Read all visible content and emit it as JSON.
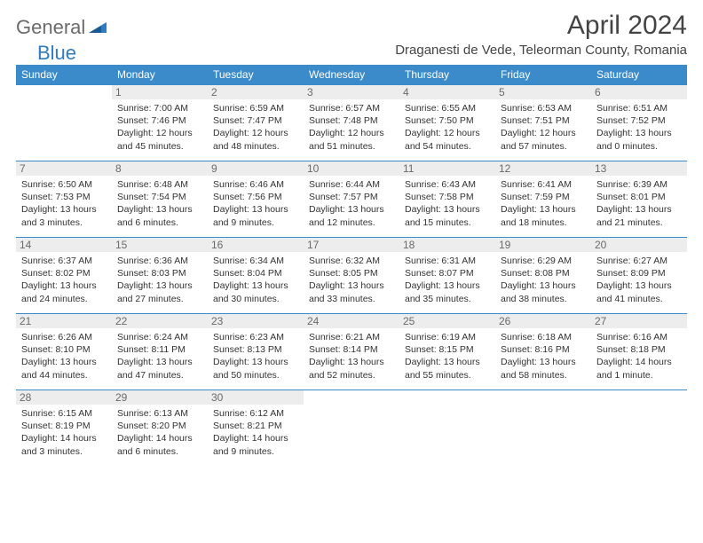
{
  "logo": {
    "word1": "General",
    "word2": "Blue"
  },
  "title": "April 2024",
  "location": "Draganesti de Vede, Teleorman County, Romania",
  "colors": {
    "header_bg": "#3b8bca",
    "header_text": "#ffffff",
    "row_border": "#3b8bca",
    "daynum_bg": "#ededed",
    "daynum_text": "#6a6a6a",
    "body_text": "#333333",
    "logo_gray": "#6b6b6b",
    "logo_blue": "#2f7dc0",
    "page_bg": "#ffffff"
  },
  "typography": {
    "title_fontsize": 30,
    "location_fontsize": 15,
    "dayheader_fontsize": 12,
    "daynum_fontsize": 12,
    "cell_fontsize": 10.5,
    "logo_fontsize": 22
  },
  "day_headers": [
    "Sunday",
    "Monday",
    "Tuesday",
    "Wednesday",
    "Thursday",
    "Friday",
    "Saturday"
  ],
  "weeks": [
    [
      null,
      {
        "n": "1",
        "sunrise": "7:00 AM",
        "sunset": "7:46 PM",
        "daylight": "12 hours and 45 minutes."
      },
      {
        "n": "2",
        "sunrise": "6:59 AM",
        "sunset": "7:47 PM",
        "daylight": "12 hours and 48 minutes."
      },
      {
        "n": "3",
        "sunrise": "6:57 AM",
        "sunset": "7:48 PM",
        "daylight": "12 hours and 51 minutes."
      },
      {
        "n": "4",
        "sunrise": "6:55 AM",
        "sunset": "7:50 PM",
        "daylight": "12 hours and 54 minutes."
      },
      {
        "n": "5",
        "sunrise": "6:53 AM",
        "sunset": "7:51 PM",
        "daylight": "12 hours and 57 minutes."
      },
      {
        "n": "6",
        "sunrise": "6:51 AM",
        "sunset": "7:52 PM",
        "daylight": "13 hours and 0 minutes."
      }
    ],
    [
      {
        "n": "7",
        "sunrise": "6:50 AM",
        "sunset": "7:53 PM",
        "daylight": "13 hours and 3 minutes."
      },
      {
        "n": "8",
        "sunrise": "6:48 AM",
        "sunset": "7:54 PM",
        "daylight": "13 hours and 6 minutes."
      },
      {
        "n": "9",
        "sunrise": "6:46 AM",
        "sunset": "7:56 PM",
        "daylight": "13 hours and 9 minutes."
      },
      {
        "n": "10",
        "sunrise": "6:44 AM",
        "sunset": "7:57 PM",
        "daylight": "13 hours and 12 minutes."
      },
      {
        "n": "11",
        "sunrise": "6:43 AM",
        "sunset": "7:58 PM",
        "daylight": "13 hours and 15 minutes."
      },
      {
        "n": "12",
        "sunrise": "6:41 AM",
        "sunset": "7:59 PM",
        "daylight": "13 hours and 18 minutes."
      },
      {
        "n": "13",
        "sunrise": "6:39 AM",
        "sunset": "8:01 PM",
        "daylight": "13 hours and 21 minutes."
      }
    ],
    [
      {
        "n": "14",
        "sunrise": "6:37 AM",
        "sunset": "8:02 PM",
        "daylight": "13 hours and 24 minutes."
      },
      {
        "n": "15",
        "sunrise": "6:36 AM",
        "sunset": "8:03 PM",
        "daylight": "13 hours and 27 minutes."
      },
      {
        "n": "16",
        "sunrise": "6:34 AM",
        "sunset": "8:04 PM",
        "daylight": "13 hours and 30 minutes."
      },
      {
        "n": "17",
        "sunrise": "6:32 AM",
        "sunset": "8:05 PM",
        "daylight": "13 hours and 33 minutes."
      },
      {
        "n": "18",
        "sunrise": "6:31 AM",
        "sunset": "8:07 PM",
        "daylight": "13 hours and 35 minutes."
      },
      {
        "n": "19",
        "sunrise": "6:29 AM",
        "sunset": "8:08 PM",
        "daylight": "13 hours and 38 minutes."
      },
      {
        "n": "20",
        "sunrise": "6:27 AM",
        "sunset": "8:09 PM",
        "daylight": "13 hours and 41 minutes."
      }
    ],
    [
      {
        "n": "21",
        "sunrise": "6:26 AM",
        "sunset": "8:10 PM",
        "daylight": "13 hours and 44 minutes."
      },
      {
        "n": "22",
        "sunrise": "6:24 AM",
        "sunset": "8:11 PM",
        "daylight": "13 hours and 47 minutes."
      },
      {
        "n": "23",
        "sunrise": "6:23 AM",
        "sunset": "8:13 PM",
        "daylight": "13 hours and 50 minutes."
      },
      {
        "n": "24",
        "sunrise": "6:21 AM",
        "sunset": "8:14 PM",
        "daylight": "13 hours and 52 minutes."
      },
      {
        "n": "25",
        "sunrise": "6:19 AM",
        "sunset": "8:15 PM",
        "daylight": "13 hours and 55 minutes."
      },
      {
        "n": "26",
        "sunrise": "6:18 AM",
        "sunset": "8:16 PM",
        "daylight": "13 hours and 58 minutes."
      },
      {
        "n": "27",
        "sunrise": "6:16 AM",
        "sunset": "8:18 PM",
        "daylight": "14 hours and 1 minute."
      }
    ],
    [
      {
        "n": "28",
        "sunrise": "6:15 AM",
        "sunset": "8:19 PM",
        "daylight": "14 hours and 3 minutes."
      },
      {
        "n": "29",
        "sunrise": "6:13 AM",
        "sunset": "8:20 PM",
        "daylight": "14 hours and 6 minutes."
      },
      {
        "n": "30",
        "sunrise": "6:12 AM",
        "sunset": "8:21 PM",
        "daylight": "14 hours and 9 minutes."
      },
      null,
      null,
      null,
      null
    ]
  ],
  "labels": {
    "sunrise": "Sunrise:",
    "sunset": "Sunset:",
    "daylight": "Daylight:"
  }
}
